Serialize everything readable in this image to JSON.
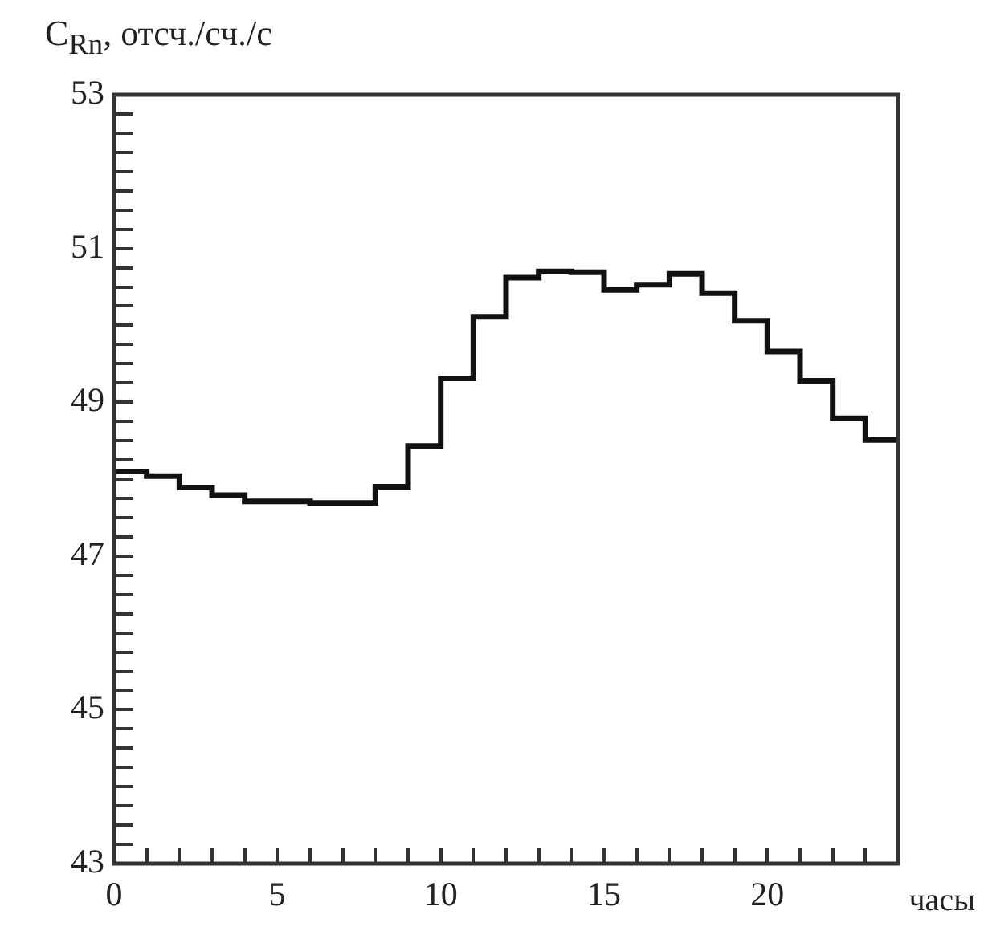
{
  "chart_data": {
    "type": "histogram",
    "ylabel": "C$_{Rn}$, отсч./сч./с",
    "xlabel": "часы",
    "bins": [
      0,
      1,
      2,
      3,
      4,
      5,
      6,
      7,
      8,
      9,
      10,
      11,
      12,
      13,
      14,
      15,
      16,
      17,
      18,
      19,
      20,
      21,
      22,
      23,
      24
    ],
    "values": [
      48.1,
      48.04,
      47.89,
      47.79,
      47.71,
      47.71,
      47.69,
      47.69,
      47.9,
      48.43,
      49.31,
      50.11,
      50.62,
      50.7,
      50.69,
      50.46,
      50.53,
      50.67,
      50.42,
      50.06,
      49.66,
      49.28,
      48.79,
      48.51
    ],
    "color": "#111111",
    "xlim": [
      0,
      24
    ],
    "xticks": [
      0,
      {
        "value": 1,
        "label": null
      },
      {
        "value": 2,
        "label": null
      },
      {
        "value": 3,
        "label": null
      },
      {
        "value": 4,
        "label": null
      },
      5,
      {
        "value": 6,
        "label": null
      },
      {
        "value": 7,
        "label": null
      },
      {
        "value": 8,
        "label": null
      },
      {
        "value": 9,
        "label": null
      },
      10,
      {
        "value": 11,
        "label": null
      },
      {
        "value": 12,
        "label": null
      },
      {
        "value": 13,
        "label": null
      },
      {
        "value": 14,
        "label": null
      },
      15,
      {
        "value": 16,
        "label": null
      },
      {
        "value": 17,
        "label": null
      },
      {
        "value": 18,
        "label": null
      },
      {
        "value": 19,
        "label": null
      },
      20,
      {
        "value": 21,
        "label": null
      },
      {
        "value": 22,
        "label": null
      },
      {
        "value": 23,
        "label": null
      },
      {
        "value": 24,
        "label": null
      }
    ],
    "ylim": [
      43,
      53
    ],
    "yticks": [
      43,
      {
        "value": 43.25,
        "label": null
      },
      {
        "value": 43.5,
        "label": null
      },
      {
        "value": 43.75,
        "label": null
      },
      {
        "value": 44,
        "label": null
      },
      {
        "value": 44.25,
        "label": null
      },
      {
        "value": 44.5,
        "label": null
      },
      {
        "value": 44.75,
        "label": null
      },
      45,
      {
        "value": 45.25,
        "label": null
      },
      {
        "value": 45.5,
        "label": null
      },
      {
        "value": 45.75,
        "label": null
      },
      {
        "value": 46,
        "label": null
      },
      {
        "value": 46.25,
        "label": null
      },
      {
        "value": 46.5,
        "label": null
      },
      {
        "value": 46.75,
        "label": null
      },
      47,
      {
        "value": 47.25,
        "label": null
      },
      {
        "value": 47.5,
        "label": null
      },
      {
        "value": 47.75,
        "label": null
      },
      {
        "value": 48,
        "label": null
      },
      {
        "value": 48.25,
        "label": null
      },
      {
        "value": 48.5,
        "label": null
      },
      {
        "value": 48.75,
        "label": null
      },
      49,
      {
        "value": 49.25,
        "label": null
      },
      {
        "value": 49.5,
        "label": null
      },
      {
        "value": 49.75,
        "label": null
      },
      {
        "value": 50,
        "label": null
      },
      {
        "value": 50.25,
        "label": null
      },
      {
        "value": 50.5,
        "label": null
      },
      {
        "value": 50.75,
        "label": null
      },
      51,
      {
        "value": 51.25,
        "label": null
      },
      {
        "value": 51.5,
        "label": null
      },
      {
        "value": 51.75,
        "label": null
      },
      {
        "value": 52,
        "label": null
      },
      {
        "value": 52.25,
        "label": null
      },
      {
        "value": 52.5,
        "label": null
      },
      {
        "value": 52.75,
        "label": null
      },
      53
    ],
    "grid": false,
    "legend": false
  }
}
